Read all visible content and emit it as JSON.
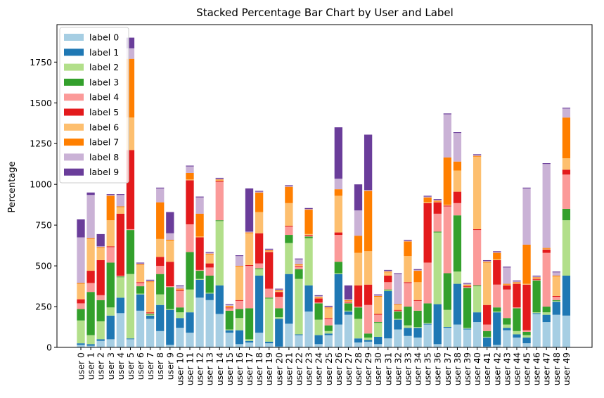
{
  "chart_data": {
    "type": "bar",
    "stacked": true,
    "title": "Stacked Percentage Bar Chart by User and Label",
    "xlabel": "",
    "ylabel": "Percentage",
    "ylim": [
      0,
      1980
    ],
    "yticks": [
      0,
      250,
      500,
      750,
      1000,
      1250,
      1500,
      1750
    ],
    "legend_position": "top-left",
    "grid": false,
    "categories": [
      "user 0",
      "user 1",
      "user 2",
      "user 3",
      "user 4",
      "user 5",
      "user 6",
      "user 7",
      "user 8",
      "user 9",
      "user 10",
      "user 11",
      "user 12",
      "user 13",
      "user 14",
      "user 15",
      "user 16",
      "user 17",
      "user 18",
      "user 19",
      "user 20",
      "user 21",
      "user 22",
      "user 23",
      "user 24",
      "user 25",
      "user 26",
      "user 27",
      "user 28",
      "user 29",
      "user 30",
      "user 31",
      "user 32",
      "user 33",
      "user 34",
      "user 35",
      "user 36",
      "user 37",
      "user 38",
      "user 39",
      "user 40",
      "user 41",
      "user 42",
      "user 43",
      "user 44",
      "user 45",
      "user 46",
      "user 47",
      "user 48",
      "user 49"
    ],
    "series": [
      {
        "name": "label 0",
        "color": "#a6cee3",
        "values": [
          15,
          10,
          40,
          50,
          210,
          50,
          225,
          175,
          100,
          15,
          120,
          90,
          305,
          290,
          205,
          90,
          20,
          30,
          90,
          25,
          5,
          145,
          75,
          220,
          20,
          75,
          140,
          200,
          30,
          35,
          20,
          55,
          110,
          70,
          60,
          140,
          20,
          120,
          140,
          110,
          155,
          5,
          15,
          105,
          60,
          25,
          205,
          155,
          200,
          195
        ]
      },
      {
        "name": "label 1",
        "color": "#1f78b4",
        "values": [
          10,
          10,
          10,
          145,
          95,
          5,
          100,
          20,
          160,
          215,
          60,
          125,
          110,
          40,
          175,
          15,
          85,
          10,
          350,
          10,
          170,
          305,
          5,
          160,
          55,
          10,
          310,
          20,
          25,
          10,
          45,
          290,
          60,
          50,
          60,
          5,
          245,
          5,
          250,
          5,
          60,
          55,
          200,
          15,
          20,
          35,
          5,
          45,
          80,
          245
        ]
      },
      {
        "name": "label 2",
        "color": "#b2df8a",
        "values": [
          140,
          55,
          110,
          50,
          125,
          395,
          5,
          5,
          65,
          5,
          35,
          140,
          5,
          5,
          395,
          5,
          75,
          10,
          40,
          265,
          10,
          190,
          340,
          290,
          95,
          15,
          5,
          5,
          120,
          15,
          85,
          5,
          5,
          15,
          5,
          5,
          440,
          105,
          75,
          5,
          160,
          5,
          5,
          20,
          20,
          15,
          5,
          15,
          5,
          340
        ]
      },
      {
        "name": "label 3",
        "color": "#33a02c",
        "values": [
          70,
          265,
          130,
          275,
          5,
          270,
          45,
          5,
          125,
          135,
          30,
          230,
          50,
          105,
          5,
          115,
          55,
          190,
          5,
          5,
          55,
          50,
          60,
          10,
          100,
          35,
          70,
          45,
          70,
          25,
          5,
          5,
          45,
          115,
          100,
          120,
          5,
          225,
          345,
          245,
          5,
          35,
          25,
          40,
          140,
          20,
          195,
          35,
          5,
          70
        ]
      },
      {
        "name": "label 4",
        "color": "#fb9a99",
        "values": [
          35,
          55,
          30,
          95,
          5,
          5,
          20,
          5,
          50,
          5,
          100,
          170,
          5,
          50,
          235,
          15,
          50,
          260,
          30,
          55,
          70,
          50,
          15,
          5,
          5,
          40,
          165,
          5,
          5,
          175,
          45,
          45,
          5,
          145,
          60,
          250,
          110,
          410,
          75,
          5,
          340,
          40,
          140,
          175,
          5,
          10,
          5,
          330,
          20,
          210
        ]
      },
      {
        "name": "label 5",
        "color": "#e31a1c",
        "values": [
          25,
          75,
          215,
          5,
          380,
          485,
          5,
          5,
          55,
          150,
          5,
          270,
          200,
          25,
          5,
          5,
          5,
          5,
          185,
          225,
          30,
          5,
          5,
          5,
          25,
          5,
          15,
          5,
          130,
          125,
          5,
          40,
          5,
          5,
          5,
          365,
          70,
          5,
          70,
          5,
          5,
          120,
          150,
          25,
          145,
          280,
          5,
          20,
          5,
          30
        ]
      },
      {
        "name": "label 6",
        "color": "#fdbf6f",
        "values": [
          95,
          195,
          75,
          160,
          40,
          200,
          105,
          185,
          110,
          130,
          5,
          5,
          5,
          55,
          5,
          5,
          205,
          195,
          130,
          5,
          5,
          140,
          5,
          5,
          5,
          60,
          225,
          5,
          200,
          205,
          105,
          20,
          30,
          160,
          110,
          5,
          5,
          5,
          130,
          5,
          445,
          260,
          5,
          5,
          5,
          5,
          5,
          5,
          120,
          70
        ]
      },
      {
        "name": "label 7",
        "color": "#ff7f00",
        "values": [
          5,
          5,
          5,
          150,
          5,
          360,
          5,
          5,
          225,
          5,
          5,
          40,
          140,
          5,
          5,
          5,
          5,
          5,
          120,
          5,
          5,
          100,
          5,
          150,
          5,
          5,
          40,
          5,
          105,
          370,
          5,
          5,
          5,
          90,
          70,
          30,
          5,
          290,
          55,
          5,
          5,
          5,
          40,
          5,
          5,
          240,
          5,
          5,
          5,
          250
        ]
      },
      {
        "name": "label 8",
        "color": "#cab2d6",
        "values": [
          280,
          265,
          5,
          5,
          70,
          65,
          5,
          5,
          85,
          40,
          15,
          40,
          100,
          5,
          5,
          5,
          60,
          5,
          5,
          5,
          5,
          5,
          30,
          5,
          5,
          5,
          65,
          5,
          155,
          5,
          5,
          5,
          185,
          5,
          5,
          5,
          5,
          265,
          175,
          5,
          5,
          5,
          5,
          100,
          5,
          345,
          5,
          515,
          20,
          55
        ]
      },
      {
        "name": "label 9",
        "color": "#6a3d9a",
        "values": [
          110,
          15,
          75,
          5,
          5,
          65,
          5,
          5,
          5,
          130,
          5,
          5,
          5,
          5,
          5,
          5,
          5,
          265,
          5,
          5,
          5,
          5,
          5,
          5,
          5,
          5,
          315,
          85,
          160,
          340,
          5,
          5,
          5,
          5,
          5,
          5,
          5,
          5,
          5,
          5,
          5,
          5,
          5,
          5,
          5,
          5,
          5,
          5,
          5,
          5
        ]
      }
    ]
  }
}
